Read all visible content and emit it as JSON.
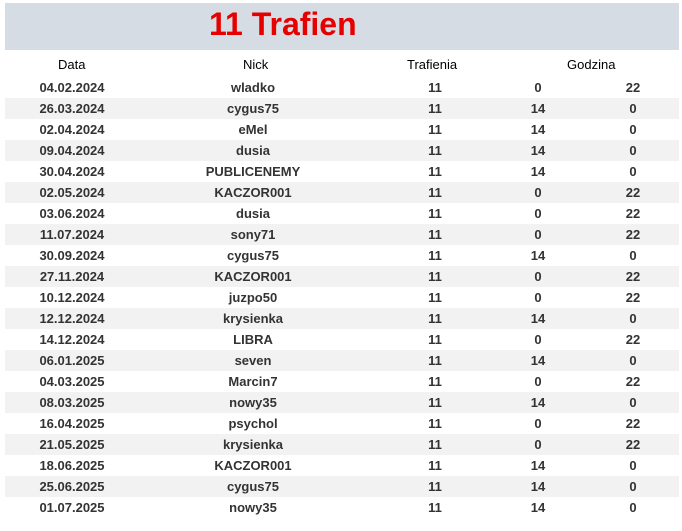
{
  "title": "11 Trafien",
  "headers": {
    "data": "Data",
    "nick": "Nick",
    "trafienia": "Trafienia",
    "godzina": "Godzina"
  },
  "rows": [
    {
      "date": "04.02.2024",
      "nick": "wladko",
      "hits": "11",
      "h1": "0",
      "h2": "22"
    },
    {
      "date": "26.03.2024",
      "nick": "cygus75",
      "hits": "11",
      "h1": "14",
      "h2": "0"
    },
    {
      "date": "02.04.2024",
      "nick": "eMel",
      "hits": "11",
      "h1": "14",
      "h2": "0"
    },
    {
      "date": "09.04.2024",
      "nick": "dusia",
      "hits": "11",
      "h1": "14",
      "h2": "0"
    },
    {
      "date": "30.04.2024",
      "nick": "PUBLICENEMY",
      "hits": "11",
      "h1": "14",
      "h2": "0"
    },
    {
      "date": "02.05.2024",
      "nick": "KACZOR001",
      "hits": "11",
      "h1": "0",
      "h2": "22"
    },
    {
      "date": "03.06.2024",
      "nick": "dusia",
      "hits": "11",
      "h1": "0",
      "h2": "22"
    },
    {
      "date": "11.07.2024",
      "nick": "sony71",
      "hits": "11",
      "h1": "0",
      "h2": "22"
    },
    {
      "date": "30.09.2024",
      "nick": "cygus75",
      "hits": "11",
      "h1": "14",
      "h2": "0"
    },
    {
      "date": "27.11.2024",
      "nick": "KACZOR001",
      "hits": "11",
      "h1": "0",
      "h2": "22"
    },
    {
      "date": "10.12.2024",
      "nick": "juzpo50",
      "hits": "11",
      "h1": "0",
      "h2": "22"
    },
    {
      "date": "12.12.2024",
      "nick": "krysienka",
      "hits": "11",
      "h1": "14",
      "h2": "0"
    },
    {
      "date": "14.12.2024",
      "nick": "LIBRA",
      "hits": "11",
      "h1": "0",
      "h2": "22"
    },
    {
      "date": "06.01.2025",
      "nick": "seven",
      "hits": "11",
      "h1": "14",
      "h2": "0"
    },
    {
      "date": "04.03.2025",
      "nick": "Marcin7",
      "hits": "11",
      "h1": "0",
      "h2": "22"
    },
    {
      "date": "08.03.2025",
      "nick": "nowy35",
      "hits": "11",
      "h1": "14",
      "h2": "0"
    },
    {
      "date": "16.04.2025",
      "nick": "psychol",
      "hits": "11",
      "h1": "0",
      "h2": "22"
    },
    {
      "date": "21.05.2025",
      "nick": "krysienka",
      "hits": "11",
      "h1": "0",
      "h2": "22"
    },
    {
      "date": "18.06.2025",
      "nick": "KACZOR001",
      "hits": "11",
      "h1": "14",
      "h2": "0"
    },
    {
      "date": "25.06.2025",
      "nick": "cygus75",
      "hits": "11",
      "h1": "14",
      "h2": "0"
    },
    {
      "date": "01.07.2025",
      "nick": "nowy35",
      "hits": "11",
      "h1": "14",
      "h2": "0"
    }
  ],
  "colors": {
    "title": "#e60000",
    "title_band": "#d6dce4",
    "row_alt": "#f2f2f2"
  }
}
